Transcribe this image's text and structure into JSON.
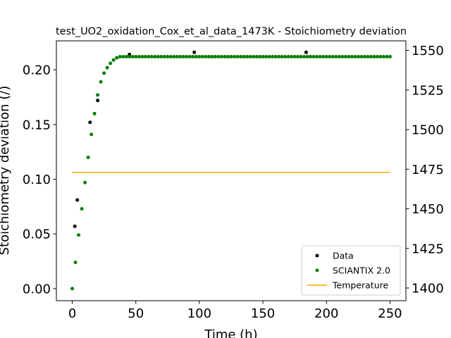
{
  "chart_data": {
    "type": "scatter",
    "title": "test_UO2_oxidation_Cox_et_al_data_1473K - Stoichiometry deviation",
    "xlabel": "Time (h)",
    "ylabel": "Stoichiometry deviation (/)",
    "y2label": "",
    "xlim": [
      -12.5,
      262.5
    ],
    "ylim": [
      -0.011,
      0.2265
    ],
    "y2lim": [
      1392,
      1556
    ],
    "x_ticks": [
      0,
      50,
      100,
      150,
      200,
      250
    ],
    "y_ticks": [
      0.0,
      0.05,
      0.1,
      0.15,
      0.2
    ],
    "y2_ticks": [
      1400,
      1425,
      1450,
      1475,
      1500,
      1525,
      1550
    ],
    "legend_position": "lower-right",
    "grid": false,
    "series": [
      {
        "name": "Data",
        "kind": "scatter",
        "axis": "left",
        "color": "#000000",
        "points": [
          [
            2,
            0.057
          ],
          [
            4,
            0.081
          ],
          [
            14,
            0.152
          ],
          [
            20,
            0.172
          ],
          [
            45,
            0.214
          ],
          [
            96,
            0.216
          ],
          [
            184,
            0.216
          ]
        ]
      },
      {
        "name": "SCIANTIX 2.0",
        "kind": "scatter",
        "axis": "left",
        "color": "#008000",
        "points": [
          [
            0,
            0.0
          ],
          [
            2.5,
            0.024
          ],
          [
            5,
            0.049
          ],
          [
            7.5,
            0.073
          ],
          [
            10,
            0.097
          ],
          [
            12.5,
            0.12
          ],
          [
            15,
            0.141
          ],
          [
            17.5,
            0.16
          ],
          [
            20,
            0.177
          ],
          [
            22.5,
            0.189
          ],
          [
            25,
            0.197
          ],
          [
            27.5,
            0.202
          ],
          [
            30,
            0.206
          ],
          [
            32.5,
            0.209
          ],
          [
            35,
            0.211
          ],
          [
            37.5,
            0.212
          ],
          [
            40,
            0.212
          ],
          [
            42.5,
            0.212
          ],
          [
            45,
            0.212
          ],
          [
            47.5,
            0.212
          ],
          [
            50,
            0.212
          ],
          [
            52.5,
            0.212
          ],
          [
            55,
            0.212
          ],
          [
            57.5,
            0.212
          ],
          [
            60,
            0.212
          ],
          [
            62.5,
            0.212
          ],
          [
            65,
            0.212
          ],
          [
            67.5,
            0.212
          ],
          [
            70,
            0.212
          ],
          [
            72.5,
            0.212
          ],
          [
            75,
            0.212
          ],
          [
            77.5,
            0.212
          ],
          [
            80,
            0.212
          ],
          [
            82.5,
            0.212
          ],
          [
            85,
            0.212
          ],
          [
            87.5,
            0.212
          ],
          [
            90,
            0.212
          ],
          [
            92.5,
            0.212
          ],
          [
            95,
            0.212
          ],
          [
            97.5,
            0.212
          ],
          [
            100,
            0.212
          ],
          [
            102.5,
            0.212
          ],
          [
            105,
            0.212
          ],
          [
            107.5,
            0.212
          ],
          [
            110,
            0.212
          ],
          [
            112.5,
            0.212
          ],
          [
            115,
            0.212
          ],
          [
            117.5,
            0.212
          ],
          [
            120,
            0.212
          ],
          [
            122.5,
            0.212
          ],
          [
            125,
            0.212
          ],
          [
            127.5,
            0.212
          ],
          [
            130,
            0.212
          ],
          [
            132.5,
            0.212
          ],
          [
            135,
            0.212
          ],
          [
            137.5,
            0.212
          ],
          [
            140,
            0.212
          ],
          [
            142.5,
            0.212
          ],
          [
            145,
            0.212
          ],
          [
            147.5,
            0.212
          ],
          [
            150,
            0.212
          ],
          [
            152.5,
            0.212
          ],
          [
            155,
            0.212
          ],
          [
            157.5,
            0.212
          ],
          [
            160,
            0.212
          ],
          [
            162.5,
            0.212
          ],
          [
            165,
            0.212
          ],
          [
            167.5,
            0.212
          ],
          [
            170,
            0.212
          ],
          [
            172.5,
            0.212
          ],
          [
            175,
            0.212
          ],
          [
            177.5,
            0.212
          ],
          [
            180,
            0.212
          ],
          [
            182.5,
            0.212
          ],
          [
            185,
            0.212
          ],
          [
            187.5,
            0.212
          ],
          [
            190,
            0.212
          ],
          [
            192.5,
            0.212
          ],
          [
            195,
            0.212
          ],
          [
            197.5,
            0.212
          ],
          [
            200,
            0.212
          ],
          [
            202.5,
            0.212
          ],
          [
            205,
            0.212
          ],
          [
            207.5,
            0.212
          ],
          [
            210,
            0.212
          ],
          [
            212.5,
            0.212
          ],
          [
            215,
            0.212
          ],
          [
            217.5,
            0.212
          ],
          [
            220,
            0.212
          ],
          [
            222.5,
            0.212
          ],
          [
            225,
            0.212
          ],
          [
            227.5,
            0.212
          ],
          [
            230,
            0.212
          ],
          [
            232.5,
            0.212
          ],
          [
            235,
            0.212
          ],
          [
            237.5,
            0.212
          ],
          [
            240,
            0.212
          ],
          [
            242.5,
            0.212
          ],
          [
            245,
            0.212
          ],
          [
            247.5,
            0.212
          ],
          [
            250,
            0.212
          ]
        ]
      },
      {
        "name": "Temperature",
        "kind": "line",
        "axis": "right",
        "color": "#ffa500",
        "points": [
          [
            0,
            1473
          ],
          [
            250,
            1473
          ]
        ]
      }
    ]
  }
}
